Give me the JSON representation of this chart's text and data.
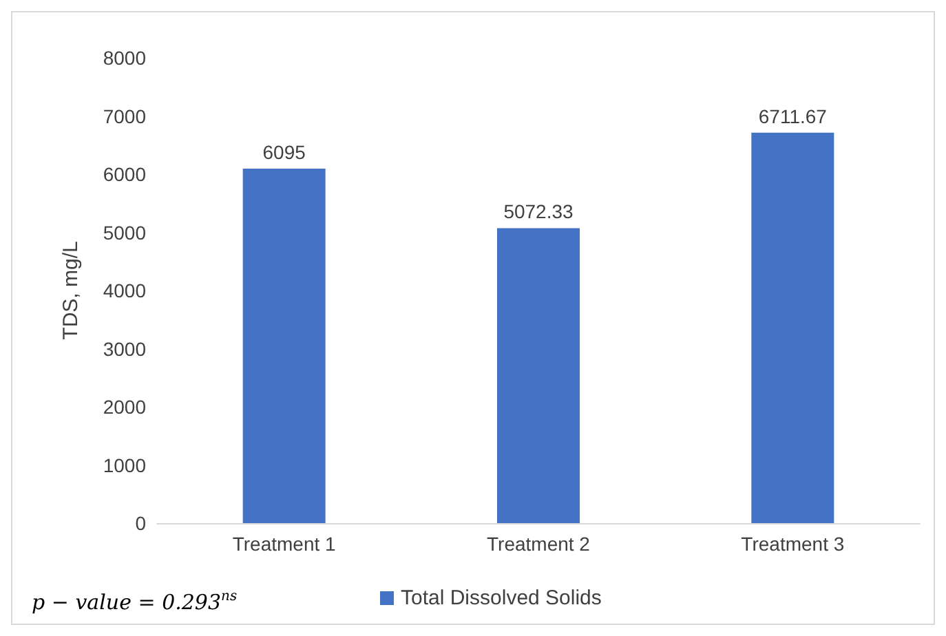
{
  "chart_data": {
    "type": "bar",
    "ylabel": "TDS, mg/L",
    "categories": [
      "Treatment 1",
      "Treatment 2",
      "Treatment 3"
    ],
    "series": [
      {
        "name": "Total Dissolved Solids",
        "color": "#4472c4",
        "values": [
          6095,
          5072.33,
          6711.67
        ]
      }
    ],
    "ylim": [
      0,
      8000
    ],
    "yticks": [
      0,
      1000,
      2000,
      3000,
      4000,
      5000,
      6000,
      7000,
      8000
    ],
    "grid": false,
    "data_labels": true,
    "legend": "bottom",
    "annotations": [
      "p − value = 0.293$^{ns}$"
    ]
  }
}
